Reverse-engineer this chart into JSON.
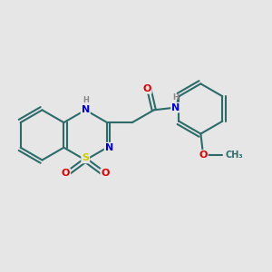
{
  "background_color": "#e6e6e6",
  "bond_color": "#2d6b6b",
  "bond_width": 1.5,
  "atom_colors": {
    "N": "#0000cc",
    "O": "#dd0000",
    "S": "#cccc00",
    "C": "#2d6b6b",
    "H": "#888888"
  },
  "font_size_atom": 8,
  "font_size_small": 6
}
